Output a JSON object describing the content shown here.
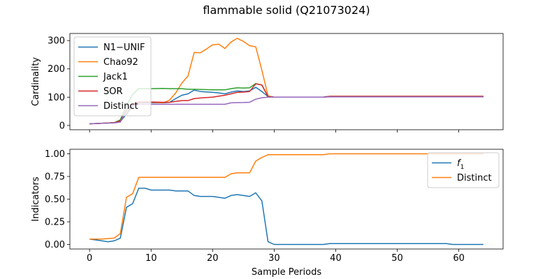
{
  "figure": {
    "title": "flammable solid (Q21073024)"
  },
  "chart_data": [
    {
      "type": "line",
      "ylabel": "Cardinality",
      "xlabel": "",
      "xlim": [
        -3.2,
        67.2
      ],
      "ylim": [
        -15,
        325
      ],
      "xticks": [
        0,
        10,
        20,
        30,
        40,
        50,
        60
      ],
      "xtick_labels_visible": false,
      "yticks": [
        0,
        100,
        200,
        300
      ],
      "legend": "upper-left",
      "series": [
        {
          "name": "N1−UNIF",
          "color": "#1f77b4",
          "points": [
            [
              0,
              6
            ],
            [
              2,
              8
            ],
            [
              4,
              10
            ],
            [
              5,
              14
            ],
            [
              6,
              40
            ],
            [
              7,
              68
            ],
            [
              8,
              80
            ],
            [
              10,
              80
            ],
            [
              12,
              80
            ],
            [
              13,
              82
            ],
            [
              14,
              95
            ],
            [
              15,
              107
            ],
            [
              16,
              112
            ],
            [
              17,
              125
            ],
            [
              18,
              120
            ],
            [
              20,
              117
            ],
            [
              21,
              115
            ],
            [
              22,
              112
            ],
            [
              23,
              118
            ],
            [
              24,
              122
            ],
            [
              25,
              120
            ],
            [
              26,
              122
            ],
            [
              27,
              135
            ],
            [
              28,
              120
            ],
            [
              29,
              102
            ],
            [
              30,
              100
            ],
            [
              38,
              100
            ],
            [
              39,
              102
            ],
            [
              50,
              102
            ],
            [
              64,
              102
            ]
          ]
        },
        {
          "name": "Chao92",
          "color": "#ff7f0e",
          "points": [
            [
              0,
              6
            ],
            [
              2,
              8
            ],
            [
              4,
              10
            ],
            [
              5,
              15
            ],
            [
              6,
              48
            ],
            [
              7,
              72
            ],
            [
              8,
              82
            ],
            [
              10,
              82
            ],
            [
              12,
              80
            ],
            [
              13,
              90
            ],
            [
              14,
              115
            ],
            [
              15,
              150
            ],
            [
              16,
              175
            ],
            [
              17,
              258
            ],
            [
              18,
              257
            ],
            [
              19,
              270
            ],
            [
              20,
              285
            ],
            [
              21,
              287
            ],
            [
              22,
              272
            ],
            [
              23,
              295
            ],
            [
              24,
              308
            ],
            [
              25,
              297
            ],
            [
              26,
              282
            ],
            [
              27,
              278
            ],
            [
              28,
              195
            ],
            [
              29,
              105
            ],
            [
              30,
              100
            ],
            [
              38,
              100
            ],
            [
              39,
              103
            ],
            [
              50,
              103
            ],
            [
              64,
              103
            ]
          ]
        },
        {
          "name": "Jack1",
          "color": "#2ca02c",
          "points": [
            [
              0,
              6
            ],
            [
              2,
              8
            ],
            [
              4,
              10
            ],
            [
              5,
              20
            ],
            [
              6,
              70
            ],
            [
              7,
              110
            ],
            [
              8,
              130
            ],
            [
              10,
              130
            ],
            [
              12,
              131
            ],
            [
              13,
              130
            ],
            [
              15,
              130
            ],
            [
              16,
              128
            ],
            [
              17,
              128
            ],
            [
              20,
              126
            ],
            [
              22,
              126
            ],
            [
              23,
              130
            ],
            [
              24,
              133
            ],
            [
              25,
              132
            ],
            [
              26,
              133
            ],
            [
              27,
              148
            ],
            [
              28,
              143
            ],
            [
              29,
              102
            ],
            [
              30,
              100
            ],
            [
              38,
              100
            ],
            [
              39,
              103
            ],
            [
              50,
              103
            ],
            [
              64,
              103
            ]
          ]
        },
        {
          "name": "SOR",
          "color": "#d62728",
          "points": [
            [
              0,
              6
            ],
            [
              2,
              8
            ],
            [
              4,
              10
            ],
            [
              5,
              16
            ],
            [
              6,
              55
            ],
            [
              7,
              75
            ],
            [
              8,
              83
            ],
            [
              10,
              83
            ],
            [
              12,
              82
            ],
            [
              13,
              82
            ],
            [
              14,
              85
            ],
            [
              15,
              88
            ],
            [
              16,
              88
            ],
            [
              17,
              95
            ],
            [
              18,
              97
            ],
            [
              20,
              100
            ],
            [
              22,
              107
            ],
            [
              23,
              112
            ],
            [
              24,
              117
            ],
            [
              25,
              118
            ],
            [
              26,
              120
            ],
            [
              27,
              147
            ],
            [
              28,
              143
            ],
            [
              29,
              102
            ],
            [
              30,
              100
            ],
            [
              38,
              100
            ],
            [
              39,
              103
            ],
            [
              50,
              103
            ],
            [
              64,
              103
            ]
          ]
        },
        {
          "name": "Distinct",
          "color": "#9467bd",
          "points": [
            [
              0,
              6
            ],
            [
              2,
              8
            ],
            [
              4,
              9
            ],
            [
              5,
              12
            ],
            [
              6,
              55
            ],
            [
              7,
              70
            ],
            [
              8,
              75
            ],
            [
              22,
              75
            ],
            [
              23,
              80
            ],
            [
              25,
              81
            ],
            [
              26,
              82
            ],
            [
              27,
              93
            ],
            [
              28,
              98
            ],
            [
              29,
              100
            ],
            [
              38,
              100
            ],
            [
              39,
              101
            ],
            [
              50,
              101
            ],
            [
              64,
              101
            ]
          ]
        }
      ]
    },
    {
      "type": "line",
      "ylabel": "Indicators",
      "xlabel": "Sample Periods",
      "xlim": [
        -3.2,
        67.2
      ],
      "ylim": [
        -0.05,
        1.05
      ],
      "xticks": [
        0,
        10,
        20,
        30,
        40,
        50,
        60
      ],
      "yticks": [
        0.0,
        0.25,
        0.5,
        0.75,
        1.0
      ],
      "ytick_labels": [
        "0.00",
        "0.25",
        "0.50",
        "0.75",
        "1.00"
      ],
      "legend": "upper-right",
      "series": [
        {
          "name": "f1",
          "label_math": "f",
          "label_sub": "1",
          "color": "#1f77b4",
          "points": [
            [
              0,
              0.06
            ],
            [
              2,
              0.04
            ],
            [
              3,
              0.03
            ],
            [
              4,
              0.04
            ],
            [
              5,
              0.07
            ],
            [
              6,
              0.41
            ],
            [
              7,
              0.45
            ],
            [
              8,
              0.62
            ],
            [
              9,
              0.62
            ],
            [
              10,
              0.6
            ],
            [
              13,
              0.6
            ],
            [
              14,
              0.59
            ],
            [
              16,
              0.59
            ],
            [
              17,
              0.54
            ],
            [
              18,
              0.53
            ],
            [
              20,
              0.53
            ],
            [
              22,
              0.51
            ],
            [
              23,
              0.54
            ],
            [
              24,
              0.55
            ],
            [
              26,
              0.53
            ],
            [
              27,
              0.57
            ],
            [
              28,
              0.48
            ],
            [
              29,
              0.03
            ],
            [
              30,
              0.0
            ],
            [
              38,
              0.0
            ],
            [
              39,
              0.01
            ],
            [
              58,
              0.01
            ],
            [
              59,
              0.0
            ],
            [
              64,
              0.0
            ]
          ]
        },
        {
          "name": "Distinct",
          "color": "#ff7f0e",
          "points": [
            [
              0,
              0.06
            ],
            [
              2,
              0.06
            ],
            [
              4,
              0.07
            ],
            [
              5,
              0.12
            ],
            [
              6,
              0.52
            ],
            [
              7,
              0.56
            ],
            [
              8,
              0.74
            ],
            [
              22,
              0.74
            ],
            [
              23,
              0.78
            ],
            [
              24,
              0.79
            ],
            [
              26,
              0.79
            ],
            [
              27,
              0.92
            ],
            [
              28,
              0.96
            ],
            [
              29,
              0.99
            ],
            [
              38,
              0.99
            ],
            [
              39,
              1.0
            ],
            [
              64,
              1.0
            ]
          ]
        }
      ]
    }
  ]
}
